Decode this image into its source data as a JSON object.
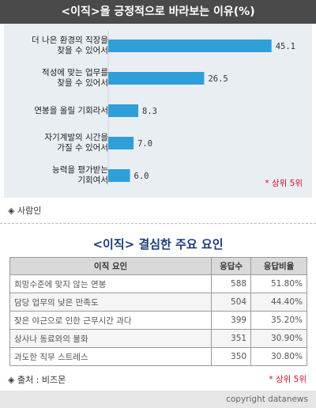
{
  "header": {
    "title": "<이직>을 긍정적으로 바라보는 이유(%)"
  },
  "chart_data": {
    "type": "bar",
    "orientation": "horizontal",
    "categories": [
      [
        "더 나은 환경의 직장을",
        "찾을 수 있어서"
      ],
      [
        "적성에 맞는 업무를",
        "찾을 수 있어서"
      ],
      [
        "연봉을 올릴 기회라서"
      ],
      [
        "자기계발의 시간을",
        "가질 수 있어서"
      ],
      [
        "능력을 평가받는",
        "기회여서"
      ]
    ],
    "values": [
      45.1,
      26.5,
      8.3,
      7.0,
      6.0
    ],
    "value_labels": [
      "45.1",
      "26.5",
      "8.3",
      "7.0",
      "6.0"
    ],
    "title": "<이직>을 긍정적으로 바라보는 이유(%)",
    "xlim": [
      0,
      48
    ],
    "bar_color": "#2e9fd9",
    "note": "* 상위 5위"
  },
  "source1": "◈ 사람인",
  "section2": {
    "title": "<이직> 결심한 주요 요인",
    "columns": [
      "이직 요인",
      "응답수",
      "응답비율"
    ],
    "rows": [
      [
        "희망수준에 맞지 않는 연봉",
        "588",
        "51.80%"
      ],
      [
        "담당 업무의 낮은 만족도",
        "504",
        "44.40%"
      ],
      [
        "잦은 야근으로 인한 근무시간 과다",
        "399",
        "35.20%"
      ],
      [
        "상사나 동료와의 불화",
        "351",
        "30.90%"
      ],
      [
        "과도한 직무 스트레스",
        "350",
        "30.80%"
      ]
    ],
    "note": "* 상위 5위",
    "source": "◈ 출처 : 비즈몬"
  },
  "footer": {
    "credit": "copyright datanews"
  },
  "colors": {
    "header_bg": "#4a4a4a",
    "panel_bg": "#e9eef2",
    "title_blue": "#1a3a7a",
    "note_red": "#d0102a"
  }
}
